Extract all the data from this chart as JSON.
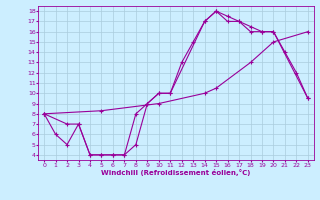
{
  "xlabel": "Windchill (Refroidissement éolien,°C)",
  "bg_color": "#cceeff",
  "line_color": "#990099",
  "grid_color": "#aaccdd",
  "xlim": [
    -0.5,
    23.5
  ],
  "ylim": [
    3.5,
    18.5
  ],
  "xticks": [
    0,
    1,
    2,
    3,
    4,
    5,
    6,
    7,
    8,
    9,
    10,
    11,
    12,
    13,
    14,
    15,
    16,
    17,
    18,
    19,
    20,
    21,
    22,
    23
  ],
  "yticks": [
    4,
    5,
    6,
    7,
    8,
    9,
    10,
    11,
    12,
    13,
    14,
    15,
    16,
    17,
    18
  ],
  "line1_x": [
    0,
    1,
    2,
    3,
    4,
    5,
    6,
    7,
    8,
    9,
    10,
    11,
    12,
    13,
    14,
    15,
    16,
    17,
    18,
    19,
    20,
    21,
    22,
    23
  ],
  "line1_y": [
    8,
    6,
    5,
    7,
    4,
    4,
    4,
    4,
    5,
    9,
    10,
    10,
    13,
    15,
    17,
    18,
    17,
    17,
    16,
    16,
    16,
    14,
    12,
    9.5
  ],
  "line2_x": [
    0,
    2,
    3,
    4,
    5,
    6,
    7,
    8,
    9,
    10,
    11,
    14,
    15,
    16,
    17,
    18,
    19,
    20,
    23
  ],
  "line2_y": [
    8,
    7,
    7,
    4,
    4,
    4,
    4,
    8,
    9,
    10,
    10,
    17,
    18,
    17.5,
    17,
    16.5,
    16,
    16,
    9.5
  ],
  "line3_x": [
    0,
    5,
    10,
    14,
    15,
    18,
    20,
    23
  ],
  "line3_y": [
    8,
    8.3,
    9,
    10,
    10.5,
    13,
    15,
    16
  ]
}
